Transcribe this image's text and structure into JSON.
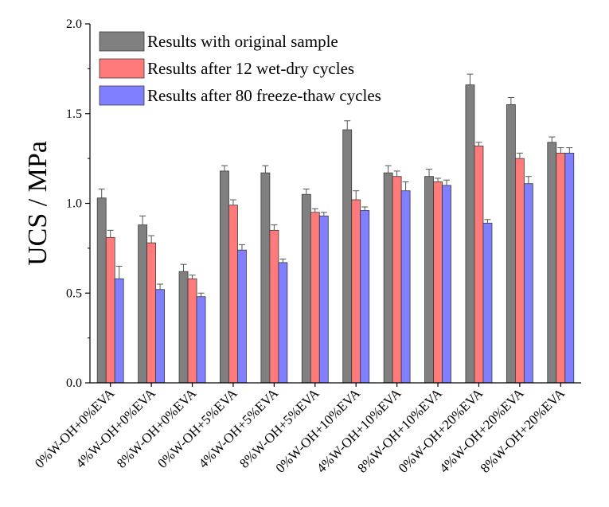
{
  "chart_data": {
    "type": "bar",
    "title": "",
    "xlabel": "",
    "ylabel": "UCS / MPa",
    "ylim": [
      0,
      2.0
    ],
    "yticks": [
      "0.0",
      "0.5",
      "1.0",
      "1.5",
      "2.0"
    ],
    "grid": false,
    "legend_position": "top-left",
    "categories": [
      "0%W-OH+0%EVA",
      "4%W-OH+0%EVA",
      "8%W-OH+0%EVA",
      "0%W-OH+5%EVA",
      "4%W-OH+5%EVA",
      "8%W-OH+5%EVA",
      "0%W-OH+10%EVA",
      "4%W-OH+10%EVA",
      "8%W-OH+10%EVA",
      "0%W-OH+20%EVA",
      "4%W-OH+20%EVA",
      "8%W-OH+20%EVA"
    ],
    "series": [
      {
        "name": "Results with original sample",
        "color": "#808080",
        "values": [
          1.03,
          0.88,
          0.62,
          1.18,
          1.17,
          1.05,
          1.41,
          1.17,
          1.15,
          1.66,
          1.55,
          1.34
        ],
        "errors": [
          0.05,
          0.05,
          0.04,
          0.03,
          0.04,
          0.03,
          0.05,
          0.04,
          0.04,
          0.06,
          0.04,
          0.03
        ]
      },
      {
        "name": "Results after 12 wet-dry cycles",
        "color": "#ff7a7a",
        "values": [
          0.81,
          0.78,
          0.58,
          0.99,
          0.85,
          0.95,
          1.02,
          1.15,
          1.12,
          1.32,
          1.25,
          1.28
        ],
        "errors": [
          0.04,
          0.04,
          0.02,
          0.03,
          0.03,
          0.02,
          0.05,
          0.03,
          0.02,
          0.02,
          0.03,
          0.03
        ]
      },
      {
        "name": "Results after 80 freeze-thaw cycles",
        "color": "#7f7fff",
        "values": [
          0.58,
          0.52,
          0.48,
          0.74,
          0.67,
          0.93,
          0.96,
          1.07,
          1.1,
          0.89,
          1.11,
          1.28
        ],
        "errors": [
          0.07,
          0.03,
          0.02,
          0.03,
          0.02,
          0.02,
          0.02,
          0.05,
          0.03,
          0.02,
          0.04,
          0.03
        ]
      }
    ]
  }
}
